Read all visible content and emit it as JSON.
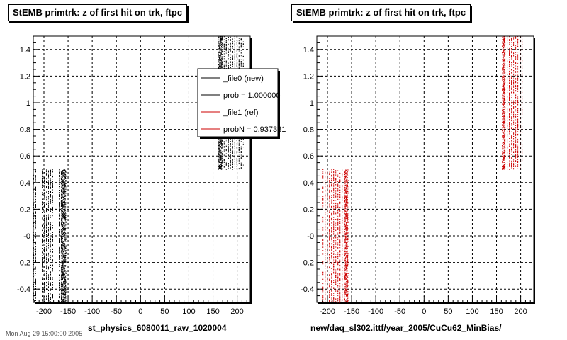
{
  "chart_data": [
    {
      "type": "scatter",
      "title": "StEMB primtrk: z of first hit on trk, ftpc",
      "xlabel": "st_physics_6080011_raw_1020004",
      "ylabel": "",
      "xlim": [
        -222,
        227
      ],
      "ylim": [
        -0.5,
        1.5
      ],
      "x_ticks": [
        -200,
        -150,
        -100,
        -50,
        0,
        50,
        100,
        150,
        200
      ],
      "y_ticks": [
        -0.4,
        -0.2,
        0,
        0.2,
        0.4,
        0.6,
        0.8,
        1,
        1.2,
        1.4
      ],
      "y_tick_labels": [
        "-0.4",
        "-0.2",
        "-0",
        "0.2",
        "0.4",
        "0.6",
        "0.8",
        "1",
        "1.2",
        "1.4"
      ],
      "grid": true,
      "series": [
        {
          "name": "_file0 (new)",
          "color": "#000000",
          "bands": [
            {
              "x_range": [
                -222,
                -165
              ],
              "y_range": [
                -0.5,
                0.5
              ],
              "density": "sparse"
            },
            {
              "x_range": [
                -165,
                -155
              ],
              "y_range": [
                -0.5,
                0.5
              ],
              "density": "dense"
            },
            {
              "x_range": [
                160,
                168
              ],
              "y_range": [
                0.5,
                1.5
              ],
              "density": "dense"
            },
            {
              "x_range": [
                168,
                212
              ],
              "y_range": [
                0.5,
                1.5
              ],
              "density": "sparse"
            }
          ]
        }
      ],
      "legend": {
        "placement": "top-right",
        "entries": [
          {
            "label": "_file0 (new)",
            "color": "#000000"
          },
          {
            "label": "prob = 1.000000",
            "color": "#000000"
          },
          {
            "label": "_file1 (ref)",
            "color": "#cc0000"
          },
          {
            "label": "probN = 0.937381",
            "color": "#cc0000"
          }
        ]
      }
    },
    {
      "type": "scatter",
      "title": "StEMB primtrk: z of first hit on trk, ftpc",
      "xlabel": "new/daq_sl302.ittf/year_2005/CuCu62_MinBias/",
      "ylabel": "",
      "xlim": [
        -222,
        227
      ],
      "ylim": [
        -0.5,
        1.5
      ],
      "x_ticks": [
        -200,
        -150,
        -100,
        -50,
        0,
        50,
        100,
        150,
        200
      ],
      "y_ticks": [
        -0.4,
        -0.2,
        0,
        0.2,
        0.4,
        0.6,
        0.8,
        1,
        1.2,
        1.4
      ],
      "y_tick_labels": [
        "-0.4",
        "-0.2",
        "-0",
        "0.2",
        "0.4",
        "0.6",
        "0.8",
        "1",
        "1.2",
        "1.4"
      ],
      "grid": true,
      "series": [
        {
          "name": "_file1 (ref)",
          "color": "#cc0000",
          "bands": [
            {
              "x_range": [
                -210,
                -165
              ],
              "y_range": [
                -0.5,
                0.5
              ],
              "density": "sparse"
            },
            {
              "x_range": [
                -165,
                -158
              ],
              "y_range": [
                -0.5,
                0.5
              ],
              "density": "dense"
            },
            {
              "x_range": [
                161,
                167
              ],
              "y_range": [
                0.5,
                1.5
              ],
              "density": "dense"
            },
            {
              "x_range": [
                167,
                203
              ],
              "y_range": [
                0.5,
                1.5
              ],
              "density": "sparse"
            }
          ]
        }
      ]
    }
  ],
  "footer_text": "Mon Aug 29 15:00:00 2005"
}
